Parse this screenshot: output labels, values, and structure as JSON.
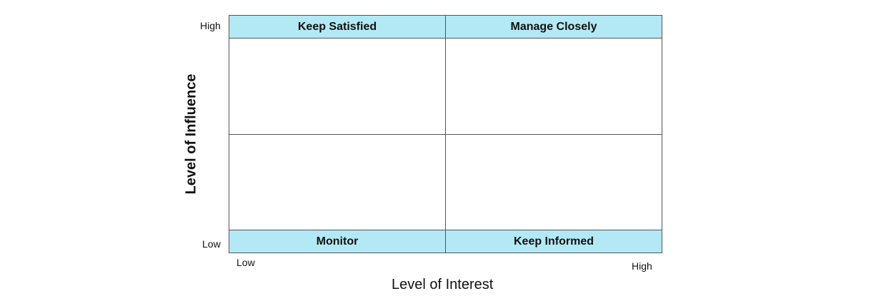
{
  "quadrants": {
    "top_left": "Keep Satisfied",
    "top_right": "Manage Closely",
    "bottom_left": "Monitor",
    "bottom_right": "Keep Informed"
  },
  "y_axis": {
    "label": "Level of Influence",
    "high": "High",
    "low": "Low"
  },
  "x_axis": {
    "label": "Level of Interest",
    "low": "Low",
    "high": "High"
  },
  "colors": {
    "band": "#b3e9f5",
    "lines": "#555555"
  }
}
